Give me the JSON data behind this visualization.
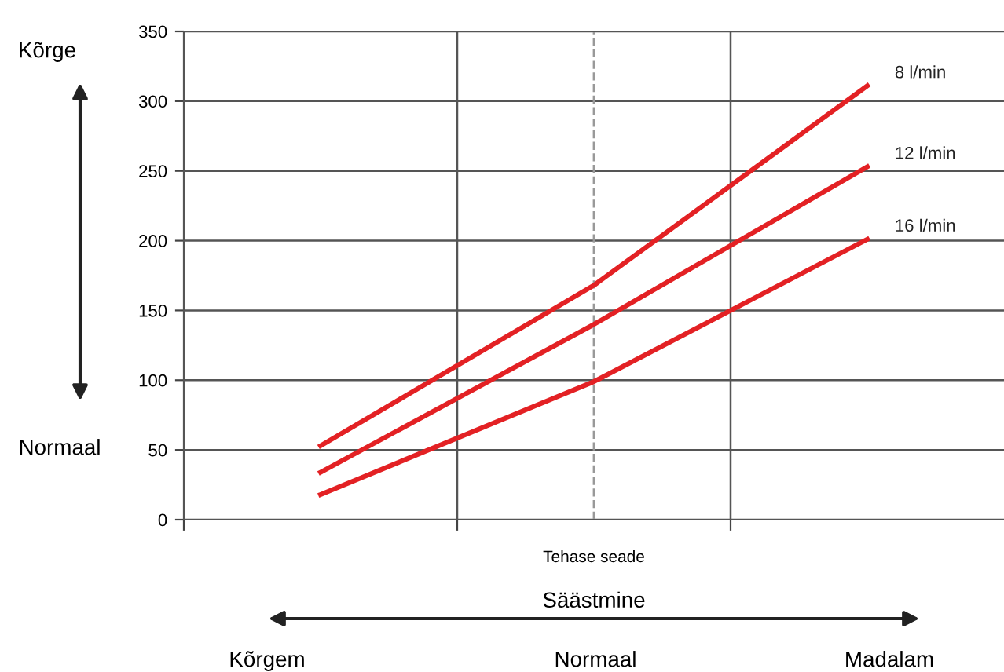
{
  "chart_data": {
    "type": "line",
    "categories": [
      null,
      null,
      null
    ],
    "series": [
      {
        "name": "8 l/min",
        "color": "#e32124",
        "values": [
          53,
          168,
          311
        ]
      },
      {
        "name": "12 l/min",
        "color": "#e32124",
        "values": [
          34,
          140,
          253
        ]
      },
      {
        "name": "16 l/min",
        "color": "#e32124",
        "values": [
          18,
          99,
          201
        ]
      }
    ],
    "ylim": [
      0,
      350
    ],
    "yticks": [
      0,
      50,
      100,
      150,
      200,
      250,
      300,
      350
    ],
    "ref_lines": [
      {
        "axis": "x",
        "label": "Tehase seade",
        "color": "#999999",
        "line_style": "dashed"
      }
    ],
    "xlabel": "Säästmine",
    "annotations": [
      "Kõrgem",
      "Normaal",
      "Madalam",
      "Kõrge",
      "Normaal"
    ],
    "grid": true,
    "legend": false,
    "tick_labels": "y",
    "marker": "none",
    "line_style": "solid"
  }
}
